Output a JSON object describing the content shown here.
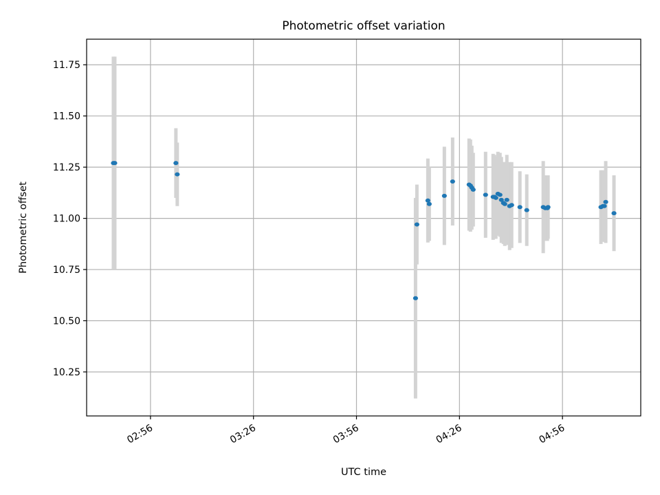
{
  "chart_data": {
    "type": "scatter",
    "title": "Photometric offset variation",
    "xlabel": "UTC time",
    "ylabel": "Photometric offset",
    "x_ticks": [
      "02:56",
      "03:26",
      "03:56",
      "04:26",
      "04:56"
    ],
    "y_ticks": [
      "10.25",
      "10.50",
      "10.75",
      "11.00",
      "11.25",
      "11.50",
      "11.75"
    ],
    "xlim": [
      "02:37:24",
      "05:18:48"
    ],
    "ylim": [
      10.035,
      11.875
    ],
    "grid": true,
    "colors": {
      "marker": "#1f77b4",
      "errorbar": "#d3d3d3",
      "grid": "#b0b0b0"
    },
    "points": [
      {
        "time": "02:45:12",
        "y": 11.27,
        "err": 0.52
      },
      {
        "time": "02:45:36",
        "y": 11.27,
        "err": 0.52
      },
      {
        "time": "03:03:24",
        "y": 11.27,
        "err": 0.17
      },
      {
        "time": "03:03:48",
        "y": 11.215,
        "err": 0.155
      },
      {
        "time": "04:13:12",
        "y": 10.61,
        "err": 0.49
      },
      {
        "time": "04:13:36",
        "y": 10.97,
        "err": 0.195
      },
      {
        "time": "04:16:48",
        "y": 11.087,
        "err": 0.205
      },
      {
        "time": "04:17:12",
        "y": 11.07,
        "err": 0.18
      },
      {
        "time": "04:21:36",
        "y": 11.11,
        "err": 0.24
      },
      {
        "time": "04:24:00",
        "y": 11.18,
        "err": 0.215
      },
      {
        "time": "04:28:48",
        "y": 11.165,
        "err": 0.225
      },
      {
        "time": "04:29:12",
        "y": 11.16,
        "err": 0.225
      },
      {
        "time": "04:29:36",
        "y": 11.15,
        "err": 0.205
      },
      {
        "time": "04:30:00",
        "y": 11.14,
        "err": 0.18
      },
      {
        "time": "04:33:36",
        "y": 11.115,
        "err": 0.21
      },
      {
        "time": "04:35:48",
        "y": 11.105,
        "err": 0.21
      },
      {
        "time": "04:36:12",
        "y": 11.105,
        "err": 0.205
      },
      {
        "time": "04:36:36",
        "y": 11.1,
        "err": 0.2
      },
      {
        "time": "04:37:12",
        "y": 11.12,
        "err": 0.205
      },
      {
        "time": "04:37:48",
        "y": 11.115,
        "err": 0.205
      },
      {
        "time": "04:38:12",
        "y": 11.09,
        "err": 0.21
      },
      {
        "time": "04:38:48",
        "y": 11.075,
        "err": 0.2
      },
      {
        "time": "04:39:12",
        "y": 11.07,
        "err": 0.205
      },
      {
        "time": "04:39:48",
        "y": 11.09,
        "err": 0.22
      },
      {
        "time": "04:40:36",
        "y": 11.06,
        "err": 0.215
      },
      {
        "time": "04:41:12",
        "y": 11.065,
        "err": 0.21
      },
      {
        "time": "04:43:36",
        "y": 11.055,
        "err": 0.175
      },
      {
        "time": "04:45:36",
        "y": 11.04,
        "err": 0.175
      },
      {
        "time": "04:50:24",
        "y": 11.055,
        "err": 0.225
      },
      {
        "time": "04:51:00",
        "y": 11.05,
        "err": 0.16
      },
      {
        "time": "04:51:36",
        "y": 11.05,
        "err": 0.16
      },
      {
        "time": "04:51:48",
        "y": 11.055,
        "err": 0.155
      },
      {
        "time": "05:07:12",
        "y": 11.055,
        "err": 0.18
      },
      {
        "time": "05:07:48",
        "y": 11.06,
        "err": 0.175
      },
      {
        "time": "05:08:12",
        "y": 11.06,
        "err": 0.17
      },
      {
        "time": "05:08:36",
        "y": 11.08,
        "err": 0.2
      },
      {
        "time": "05:11:00",
        "y": 11.025,
        "err": 0.185
      }
    ]
  }
}
